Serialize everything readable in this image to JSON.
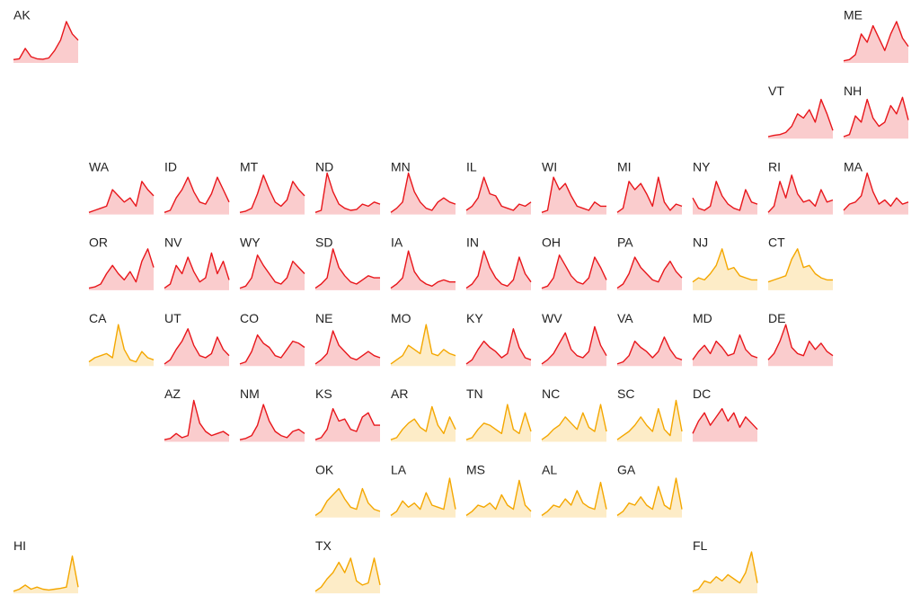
{
  "chart_data": {
    "type": "line",
    "ylim": [
      0,
      100
    ],
    "series": [
      {
        "name": "AK",
        "color": "#e8161b",
        "values": [
          8,
          10,
          35,
          15,
          10,
          9,
          12,
          30,
          55,
          100,
          70,
          55
        ]
      },
      {
        "name": "ME",
        "color": "#e8161b",
        "values": [
          5,
          8,
          20,
          70,
          50,
          90,
          60,
          30,
          70,
          100,
          60,
          40
        ]
      },
      {
        "name": "VT",
        "color": "#e8161b",
        "values": [
          5,
          8,
          10,
          15,
          30,
          60,
          50,
          70,
          40,
          95,
          60,
          20
        ]
      },
      {
        "name": "NH",
        "color": "#e8161b",
        "values": [
          5,
          10,
          55,
          40,
          95,
          50,
          30,
          40,
          80,
          60,
          100,
          45
        ]
      },
      {
        "name": "WA",
        "color": "#e8161b",
        "values": [
          5,
          10,
          15,
          20,
          60,
          45,
          30,
          40,
          20,
          80,
          60,
          45
        ]
      },
      {
        "name": "ID",
        "color": "#e8161b",
        "values": [
          5,
          10,
          40,
          60,
          90,
          55,
          30,
          25,
          50,
          90,
          60,
          30
        ]
      },
      {
        "name": "MT",
        "color": "#e8161b",
        "values": [
          5,
          8,
          15,
          50,
          95,
          60,
          30,
          20,
          35,
          80,
          60,
          45
        ]
      },
      {
        "name": "ND",
        "color": "#e8161b",
        "values": [
          5,
          10,
          100,
          55,
          25,
          15,
          10,
          12,
          25,
          20,
          30,
          25
        ]
      },
      {
        "name": "MN",
        "color": "#e8161b",
        "values": [
          5,
          15,
          30,
          100,
          55,
          30,
          15,
          10,
          30,
          40,
          30,
          25
        ]
      },
      {
        "name": "IL",
        "color": "#e8161b",
        "values": [
          10,
          20,
          40,
          90,
          50,
          45,
          20,
          15,
          10,
          25,
          20,
          30
        ]
      },
      {
        "name": "WI",
        "color": "#e8161b",
        "values": [
          5,
          10,
          90,
          60,
          75,
          45,
          20,
          15,
          10,
          30,
          20,
          20
        ]
      },
      {
        "name": "MI",
        "color": "#e8161b",
        "values": [
          5,
          15,
          80,
          60,
          75,
          50,
          20,
          90,
          30,
          10,
          25,
          20
        ]
      },
      {
        "name": "NY",
        "color": "#e8161b",
        "values": [
          40,
          15,
          10,
          20,
          80,
          45,
          25,
          15,
          10,
          60,
          30,
          25
        ]
      },
      {
        "name": "RI",
        "color": "#e8161b",
        "values": [
          5,
          20,
          80,
          40,
          95,
          50,
          30,
          35,
          20,
          60,
          30,
          35
        ]
      },
      {
        "name": "MA",
        "color": "#e8161b",
        "values": [
          10,
          25,
          30,
          45,
          100,
          55,
          25,
          35,
          20,
          40,
          25,
          30
        ]
      },
      {
        "name": "OR",
        "color": "#e8161b",
        "values": [
          5,
          8,
          15,
          40,
          60,
          40,
          25,
          45,
          20,
          70,
          100,
          55
        ]
      },
      {
        "name": "NV",
        "color": "#e8161b",
        "values": [
          5,
          15,
          60,
          40,
          80,
          45,
          20,
          30,
          90,
          40,
          70,
          25
        ]
      },
      {
        "name": "WY",
        "color": "#e8161b",
        "values": [
          5,
          10,
          30,
          85,
          60,
          40,
          20,
          15,
          30,
          70,
          55,
          40
        ]
      },
      {
        "name": "SD",
        "color": "#e8161b",
        "values": [
          5,
          15,
          30,
          100,
          55,
          35,
          20,
          15,
          25,
          35,
          30,
          30
        ]
      },
      {
        "name": "IA",
        "color": "#e8161b",
        "values": [
          5,
          15,
          30,
          95,
          45,
          25,
          15,
          10,
          20,
          25,
          20,
          20
        ]
      },
      {
        "name": "IN",
        "color": "#e8161b",
        "values": [
          5,
          15,
          35,
          95,
          55,
          30,
          15,
          10,
          25,
          80,
          40,
          20
        ]
      },
      {
        "name": "OH",
        "color": "#e8161b",
        "values": [
          5,
          10,
          30,
          85,
          60,
          35,
          20,
          15,
          30,
          80,
          55,
          25
        ]
      },
      {
        "name": "PA",
        "color": "#e8161b",
        "values": [
          5,
          15,
          40,
          80,
          55,
          40,
          25,
          20,
          50,
          70,
          45,
          30
        ]
      },
      {
        "name": "NJ",
        "color": "#f4a700",
        "values": [
          20,
          30,
          25,
          40,
          60,
          100,
          50,
          55,
          35,
          30,
          25,
          25
        ]
      },
      {
        "name": "CT",
        "color": "#f4a700",
        "values": [
          20,
          25,
          30,
          35,
          75,
          100,
          55,
          60,
          40,
          30,
          25,
          25
        ]
      },
      {
        "name": "CA",
        "color": "#f4a700",
        "values": [
          10,
          20,
          25,
          30,
          20,
          100,
          40,
          15,
          10,
          35,
          20,
          15
        ]
      },
      {
        "name": "UT",
        "color": "#e8161b",
        "values": [
          5,
          15,
          40,
          60,
          90,
          50,
          25,
          20,
          30,
          70,
          40,
          25
        ]
      },
      {
        "name": "CO",
        "color": "#e8161b",
        "values": [
          5,
          10,
          35,
          75,
          55,
          45,
          25,
          20,
          40,
          60,
          55,
          45
        ]
      },
      {
        "name": "NE",
        "color": "#e8161b",
        "values": [
          5,
          15,
          30,
          85,
          50,
          35,
          20,
          15,
          25,
          35,
          25,
          20
        ]
      },
      {
        "name": "MO",
        "color": "#f4a700",
        "values": [
          5,
          15,
          25,
          50,
          40,
          30,
          100,
          30,
          25,
          40,
          30,
          25
        ]
      },
      {
        "name": "KY",
        "color": "#e8161b",
        "values": [
          5,
          15,
          40,
          60,
          45,
          35,
          20,
          30,
          90,
          45,
          20,
          15
        ]
      },
      {
        "name": "WV",
        "color": "#e8161b",
        "values": [
          5,
          15,
          30,
          55,
          80,
          40,
          25,
          20,
          35,
          95,
          50,
          25
        ]
      },
      {
        "name": "VA",
        "color": "#e8161b",
        "values": [
          5,
          10,
          25,
          60,
          45,
          35,
          20,
          35,
          70,
          40,
          20,
          15
        ]
      },
      {
        "name": "MD",
        "color": "#e8161b",
        "values": [
          15,
          35,
          50,
          30,
          60,
          45,
          25,
          30,
          75,
          40,
          25,
          20
        ]
      },
      {
        "name": "DE",
        "color": "#e8161b",
        "values": [
          15,
          30,
          60,
          100,
          45,
          30,
          25,
          60,
          40,
          55,
          35,
          25
        ]
      },
      {
        "name": "AZ",
        "color": "#e8161b",
        "values": [
          5,
          8,
          20,
          10,
          15,
          100,
          45,
          25,
          15,
          20,
          25,
          15
        ]
      },
      {
        "name": "NM",
        "color": "#e8161b",
        "values": [
          5,
          8,
          15,
          40,
          90,
          50,
          25,
          15,
          10,
          25,
          30,
          20
        ]
      },
      {
        "name": "KS",
        "color": "#e8161b",
        "values": [
          5,
          10,
          30,
          80,
          50,
          55,
          30,
          25,
          60,
          70,
          40,
          40
        ]
      },
      {
        "name": "AR",
        "color": "#f4a700",
        "values": [
          5,
          10,
          30,
          45,
          55,
          35,
          25,
          85,
          40,
          20,
          60,
          30
        ]
      },
      {
        "name": "TN",
        "color": "#f4a700",
        "values": [
          5,
          10,
          30,
          45,
          40,
          30,
          20,
          90,
          30,
          20,
          70,
          25
        ]
      },
      {
        "name": "NC",
        "color": "#f4a700",
        "values": [
          5,
          15,
          30,
          40,
          60,
          45,
          30,
          70,
          35,
          25,
          90,
          25
        ]
      },
      {
        "name": "SC",
        "color": "#f4a700",
        "values": [
          5,
          15,
          25,
          40,
          60,
          40,
          25,
          80,
          30,
          15,
          100,
          25
        ]
      },
      {
        "name": "DC",
        "color": "#e8161b",
        "values": [
          20,
          50,
          70,
          40,
          60,
          80,
          50,
          70,
          35,
          60,
          45,
          30
        ]
      },
      {
        "name": "OK",
        "color": "#f4a700",
        "values": [
          5,
          15,
          40,
          55,
          70,
          45,
          25,
          20,
          70,
          35,
          20,
          15
        ]
      },
      {
        "name": "LA",
        "color": "#f4a700",
        "values": [
          5,
          15,
          40,
          25,
          35,
          20,
          60,
          30,
          25,
          20,
          95,
          20
        ]
      },
      {
        "name": "MS",
        "color": "#f4a700",
        "values": [
          5,
          15,
          30,
          25,
          35,
          20,
          55,
          30,
          20,
          90,
          30,
          15
        ]
      },
      {
        "name": "AL",
        "color": "#f4a700",
        "values": [
          5,
          15,
          30,
          25,
          45,
          30,
          65,
          35,
          25,
          20,
          85,
          20
        ]
      },
      {
        "name": "GA",
        "color": "#f4a700",
        "values": [
          5,
          15,
          35,
          30,
          50,
          30,
          20,
          75,
          30,
          20,
          95,
          20
        ]
      },
      {
        "name": "HI",
        "color": "#f4a700",
        "values": [
          5,
          10,
          20,
          10,
          15,
          10,
          8,
          10,
          12,
          15,
          90,
          15
        ]
      },
      {
        "name": "TX",
        "color": "#f4a700",
        "values": [
          5,
          15,
          35,
          50,
          75,
          50,
          85,
          30,
          20,
          25,
          85,
          20
        ]
      },
      {
        "name": "FL",
        "color": "#f4a700",
        "values": [
          5,
          10,
          30,
          25,
          40,
          30,
          45,
          35,
          25,
          50,
          100,
          25
        ]
      }
    ]
  }
}
